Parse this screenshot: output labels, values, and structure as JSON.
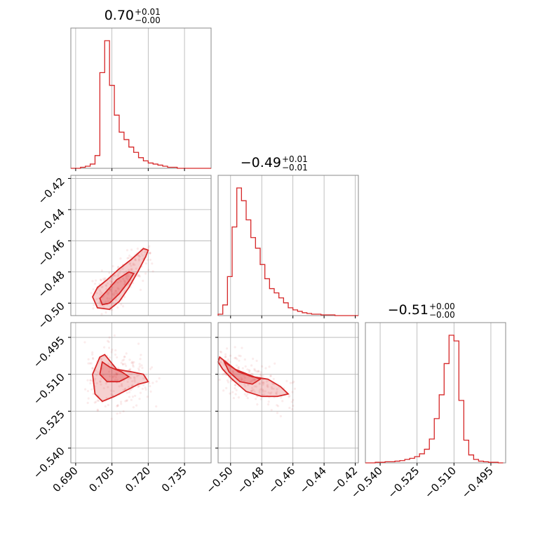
{
  "colors": {
    "series": "#d62728",
    "frame": "#888888",
    "grid": "#b0b0b0"
  },
  "chart_data": {
    "type": "corner",
    "grid": true,
    "parameters": [
      {
        "name": "",
        "median": 0.7,
        "upper_err": 0.01,
        "lower_err": 0.0,
        "title_main": "0.70",
        "title_plus": "+0.01",
        "title_minus": "−0.00",
        "range": [
          0.688,
          0.746
        ],
        "ticks": [
          0.69,
          0.705,
          0.72,
          0.735
        ],
        "tick_labels": [
          "0.690",
          "0.705",
          "0.720",
          "0.735"
        ],
        "hist": {
          "bins": [
            0.688,
            0.69,
            0.692,
            0.694,
            0.696,
            0.698,
            0.7,
            0.702,
            0.704,
            0.706,
            0.708,
            0.71,
            0.712,
            0.714,
            0.716,
            0.718,
            0.72,
            0.722,
            0.724,
            0.726,
            0.728,
            0.73,
            0.732,
            0.734,
            0.736,
            0.738,
            0.74,
            0.742,
            0.744,
            0.746
          ],
          "counts": [
            0,
            0,
            1,
            2,
            4,
            12,
            90,
            120,
            78,
            50,
            34,
            27,
            20,
            15,
            10,
            7,
            5,
            4,
            3,
            2,
            1,
            1,
            0,
            0,
            0,
            0,
            0,
            0,
            0
          ]
        }
      },
      {
        "name": "",
        "median": -0.49,
        "upper_err": 0.01,
        "lower_err": 0.01,
        "title_main": "−0.49",
        "title_plus": "+0.01",
        "title_minus": "−0.01",
        "range": [
          -0.508,
          -0.418
        ],
        "ticks": [
          -0.5,
          -0.48,
          -0.46,
          -0.44,
          -0.42
        ],
        "tick_labels": [
          "−0.50",
          "−0.48",
          "−0.46",
          "−0.44",
          "−0.42"
        ],
        "hist": {
          "bins": [
            -0.508,
            -0.505,
            -0.502,
            -0.499,
            -0.496,
            -0.493,
            -0.49,
            -0.487,
            -0.484,
            -0.481,
            -0.478,
            -0.475,
            -0.472,
            -0.469,
            -0.466,
            -0.463,
            -0.46,
            -0.457,
            -0.454,
            -0.451,
            -0.448,
            -0.445,
            -0.442,
            -0.439,
            -0.436,
            -0.433,
            -0.43,
            -0.427,
            -0.424,
            -0.421,
            -0.418
          ],
          "counts": [
            2,
            15,
            55,
            125,
            180,
            162,
            135,
            110,
            95,
            72,
            52,
            38,
            32,
            25,
            18,
            11,
            8,
            6,
            4,
            3,
            2,
            2,
            1,
            1,
            1,
            0,
            0,
            0,
            0,
            0
          ]
        }
      },
      {
        "name": "",
        "median": -0.51,
        "upper_err": 0.0,
        "lower_err": 0.0,
        "title_main": "−0.51",
        "title_plus": "+0.00",
        "title_minus": "−0.00",
        "range": [
          -0.546,
          -0.489
        ],
        "ticks": [
          -0.54,
          -0.525,
          -0.51,
          -0.495
        ],
        "tick_labels": [
          "−0.540",
          "−0.525",
          "−0.510",
          "−0.495"
        ],
        "hist": {
          "bins": [
            -0.546,
            -0.544,
            -0.542,
            -0.54,
            -0.538,
            -0.536,
            -0.534,
            -0.532,
            -0.53,
            -0.528,
            -0.526,
            -0.524,
            -0.522,
            -0.52,
            -0.518,
            -0.516,
            -0.514,
            -0.512,
            -0.51,
            -0.508,
            -0.506,
            -0.504,
            -0.502,
            -0.5,
            -0.498,
            -0.496,
            -0.494,
            -0.492,
            -0.49
          ],
          "counts": [
            0,
            0,
            1,
            1,
            2,
            2,
            3,
            4,
            6,
            8,
            11,
            16,
            24,
            42,
            78,
            120,
            175,
            225,
            215,
            110,
            40,
            14,
            6,
            3,
            2,
            1,
            1,
            0
          ]
        }
      }
    ],
    "pairs": [
      {
        "x_param": 0,
        "y_param": 1,
        "outer_contour": [
          [
            0.699,
            -0.503
          ],
          [
            0.704,
            -0.504
          ],
          [
            0.708,
            -0.499
          ],
          [
            0.712,
            -0.49
          ],
          [
            0.716,
            -0.479
          ],
          [
            0.719,
            -0.47
          ],
          [
            0.72,
            -0.466
          ],
          [
            0.718,
            -0.465
          ],
          [
            0.713,
            -0.472
          ],
          [
            0.708,
            -0.478
          ],
          [
            0.703,
            -0.485
          ],
          [
            0.699,
            -0.49
          ],
          [
            0.697,
            -0.496
          ]
        ],
        "inner_contour": [
          [
            0.701,
            -0.501
          ],
          [
            0.704,
            -0.5
          ],
          [
            0.708,
            -0.494
          ],
          [
            0.712,
            -0.486
          ],
          [
            0.714,
            -0.481
          ],
          [
            0.712,
            -0.48
          ],
          [
            0.707,
            -0.485
          ],
          [
            0.703,
            -0.492
          ],
          [
            0.7,
            -0.497
          ]
        ],
        "scatter_spread": [
          0.004,
          0.004
        ]
      },
      {
        "x_param": 0,
        "y_param": 2,
        "outer_contour": [
          [
            0.7,
            -0.503
          ],
          [
            0.702,
            -0.502
          ],
          [
            0.707,
            -0.508
          ],
          [
            0.713,
            -0.509
          ],
          [
            0.718,
            -0.51
          ],
          [
            0.72,
            -0.513
          ],
          [
            0.716,
            -0.514
          ],
          [
            0.71,
            -0.517
          ],
          [
            0.706,
            -0.519
          ],
          [
            0.701,
            -0.521
          ],
          [
            0.698,
            -0.518
          ],
          [
            0.697,
            -0.51
          ]
        ],
        "inner_contour": [
          [
            0.701,
            -0.505
          ],
          [
            0.704,
            -0.507
          ],
          [
            0.709,
            -0.509
          ],
          [
            0.712,
            -0.511
          ],
          [
            0.708,
            -0.513
          ],
          [
            0.703,
            -0.513
          ],
          [
            0.7,
            -0.51
          ]
        ],
        "scatter_spread": [
          0.006,
          0.007
        ]
      },
      {
        "x_param": 1,
        "y_param": 2,
        "outer_contour": [
          [
            -0.507,
            -0.503
          ],
          [
            -0.503,
            -0.505
          ],
          [
            -0.495,
            -0.509
          ],
          [
            -0.486,
            -0.511
          ],
          [
            -0.476,
            -0.512
          ],
          [
            -0.468,
            -0.515
          ],
          [
            -0.463,
            -0.518
          ],
          [
            -0.47,
            -0.519
          ],
          [
            -0.48,
            -0.519
          ],
          [
            -0.49,
            -0.517
          ],
          [
            -0.499,
            -0.512
          ],
          [
            -0.505,
            -0.508
          ],
          [
            -0.508,
            -0.505
          ]
        ],
        "inner_contour": [
          [
            -0.504,
            -0.505
          ],
          [
            -0.497,
            -0.508
          ],
          [
            -0.489,
            -0.51
          ],
          [
            -0.481,
            -0.512
          ],
          [
            -0.486,
            -0.514
          ],
          [
            -0.494,
            -0.513
          ],
          [
            -0.501,
            -0.509
          ]
        ],
        "scatter_spread": [
          0.008,
          0.006
        ]
      }
    ]
  }
}
